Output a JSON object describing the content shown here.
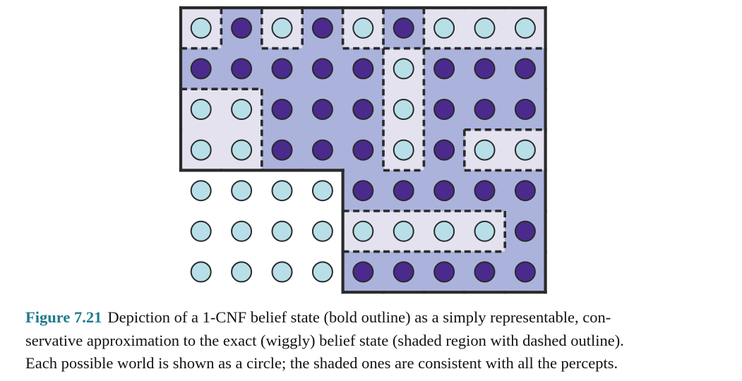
{
  "figure": {
    "label": "Figure 7.21",
    "caption_lines": [
      "Depiction of a 1-CNF belief state (bold outline) as a simply representable, con-",
      "servative approximation to the exact (wiggly) belief state (shaded region with dashed outline).",
      "Each possible world is shown as a circle; the shaded ones are consistent with all the percepts."
    ]
  },
  "diagram": {
    "columns": 9,
    "rows": 7,
    "worlds": [
      "ldldldlll",
      "dddddlddd",
      "lldddlddd",
      "lldddldll",
      "llllddddd",
      "lllllllld",
      "llllddddd"
    ],
    "belief_state_1cnf": [
      [
        1,
        1,
        1,
        1,
        1,
        1,
        1,
        1,
        1
      ],
      [
        1,
        1,
        1,
        1,
        1,
        1,
        1,
        1,
        1
      ],
      [
        1,
        1,
        1,
        1,
        1,
        1,
        1,
        1,
        1
      ],
      [
        1,
        1,
        1,
        1,
        1,
        1,
        1,
        1,
        1
      ],
      [
        0,
        0,
        0,
        0,
        1,
        1,
        1,
        1,
        1
      ],
      [
        0,
        0,
        0,
        0,
        1,
        1,
        1,
        1,
        1
      ],
      [
        0,
        0,
        0,
        0,
        1,
        1,
        1,
        1,
        1
      ]
    ],
    "colors": {
      "consistent_world": "#4a2a8c",
      "inconsistent_world": "#b8dfe8",
      "exact_region_fill": "#abb3dc",
      "cnf_region_fill": "#e4e2ef",
      "outline": "#2a2a2a"
    }
  }
}
